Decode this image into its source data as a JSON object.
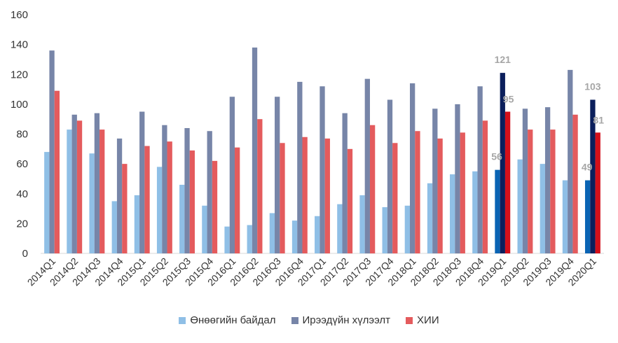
{
  "chart_data": {
    "type": "bar",
    "categories": [
      "2014Q1",
      "2014Q2",
      "2014Q3",
      "2014Q4",
      "2015Q1",
      "2015Q2",
      "2015Q3",
      "2015Q4",
      "2016Q1",
      "2016Q2",
      "2016Q3",
      "2016Q4",
      "2017Q1",
      "2017Q2",
      "2017Q3",
      "2017Q4",
      "2018Q1",
      "2018Q2",
      "2018Q3",
      "2018Q4",
      "2019Q1",
      "2019Q2",
      "2019Q3",
      "2019Q4",
      "2020Q1"
    ],
    "series": [
      {
        "name": "Өнөөгийн байдал",
        "color": "#8fbfe6",
        "highlight_color": "#0a64b4",
        "values": [
          68,
          83,
          67,
          35,
          39,
          58,
          46,
          32,
          18,
          19,
          27,
          22,
          25,
          33,
          39,
          31,
          32,
          47,
          53,
          55,
          56,
          63,
          60,
          49,
          49
        ]
      },
      {
        "name": "Ирээдүйн хүлээлт",
        "color": "#7785a8",
        "highlight_color": "#0b1f5c",
        "values": [
          136,
          93,
          94,
          77,
          95,
          86,
          84,
          82,
          105,
          138,
          105,
          115,
          112,
          94,
          117,
          103,
          114,
          97,
          100,
          112,
          121,
          97,
          98,
          123,
          103
        ]
      },
      {
        "name": "ХИИ",
        "color": "#e45b5d",
        "highlight_color": "#d4101a",
        "values": [
          109,
          89,
          83,
          60,
          72,
          75,
          69,
          62,
          71,
          90,
          74,
          78,
          77,
          70,
          86,
          74,
          82,
          77,
          81,
          89,
          95,
          83,
          83,
          93,
          81
        ]
      }
    ],
    "highlight_categories": [
      "2019Q1",
      "2020Q1"
    ],
    "data_labels": [
      {
        "category": "2019Q1",
        "values": [
          "56",
          "121",
          "95"
        ]
      },
      {
        "category": "2020Q1",
        "values": [
          "49",
          "103",
          "81"
        ]
      }
    ],
    "ylim": [
      0,
      160
    ],
    "yticks": [
      "0",
      "20",
      "40",
      "60",
      "80",
      "100",
      "120",
      "140",
      "160"
    ],
    "legend": "bottom",
    "grid": false
  }
}
